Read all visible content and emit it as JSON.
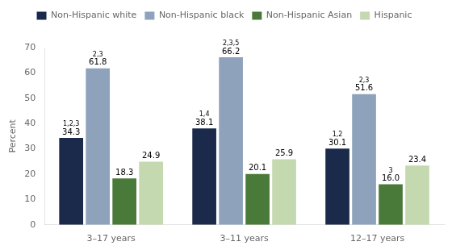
{
  "chart_data": {
    "type": "bar",
    "categories": [
      "3–17 years",
      "3–11 years",
      "12–17 years"
    ],
    "y_label": "Percent",
    "ylim": [
      0,
      70
    ],
    "yticks": [
      0,
      10,
      20,
      30,
      40,
      50,
      60,
      70
    ],
    "grid": false,
    "legend": "top",
    "data_labels": true,
    "series": [
      {
        "name": "Non-Hispanic white",
        "color": "#1b2a4a",
        "values": [
          34.3,
          38.1,
          30.1
        ],
        "value_labels": [
          "34.3",
          "38.1",
          "30.1"
        ],
        "annotations": [
          "1,2,3",
          "1,4",
          "1,2"
        ]
      },
      {
        "name": "Non-Hispanic black",
        "color": "#8ea3bb",
        "values": [
          61.8,
          66.2,
          51.6
        ],
        "value_labels": [
          "61.8",
          "66.2",
          "51.6"
        ],
        "annotations": [
          "2,3",
          "2,3,5",
          "2,3"
        ]
      },
      {
        "name": "Non-Hispanic Asian",
        "color": "#4a7a3a",
        "values": [
          18.3,
          20.1,
          16.0
        ],
        "value_labels": [
          "18.3",
          "20.1",
          "16.0"
        ],
        "annotations": [
          null,
          null,
          "3"
        ]
      },
      {
        "name": "Hispanic",
        "color": "#c5d9b0",
        "values": [
          24.9,
          25.9,
          23.4
        ],
        "value_labels": [
          "24.9",
          "25.9",
          "23.4"
        ],
        "annotations": [
          null,
          null,
          null
        ]
      }
    ]
  }
}
